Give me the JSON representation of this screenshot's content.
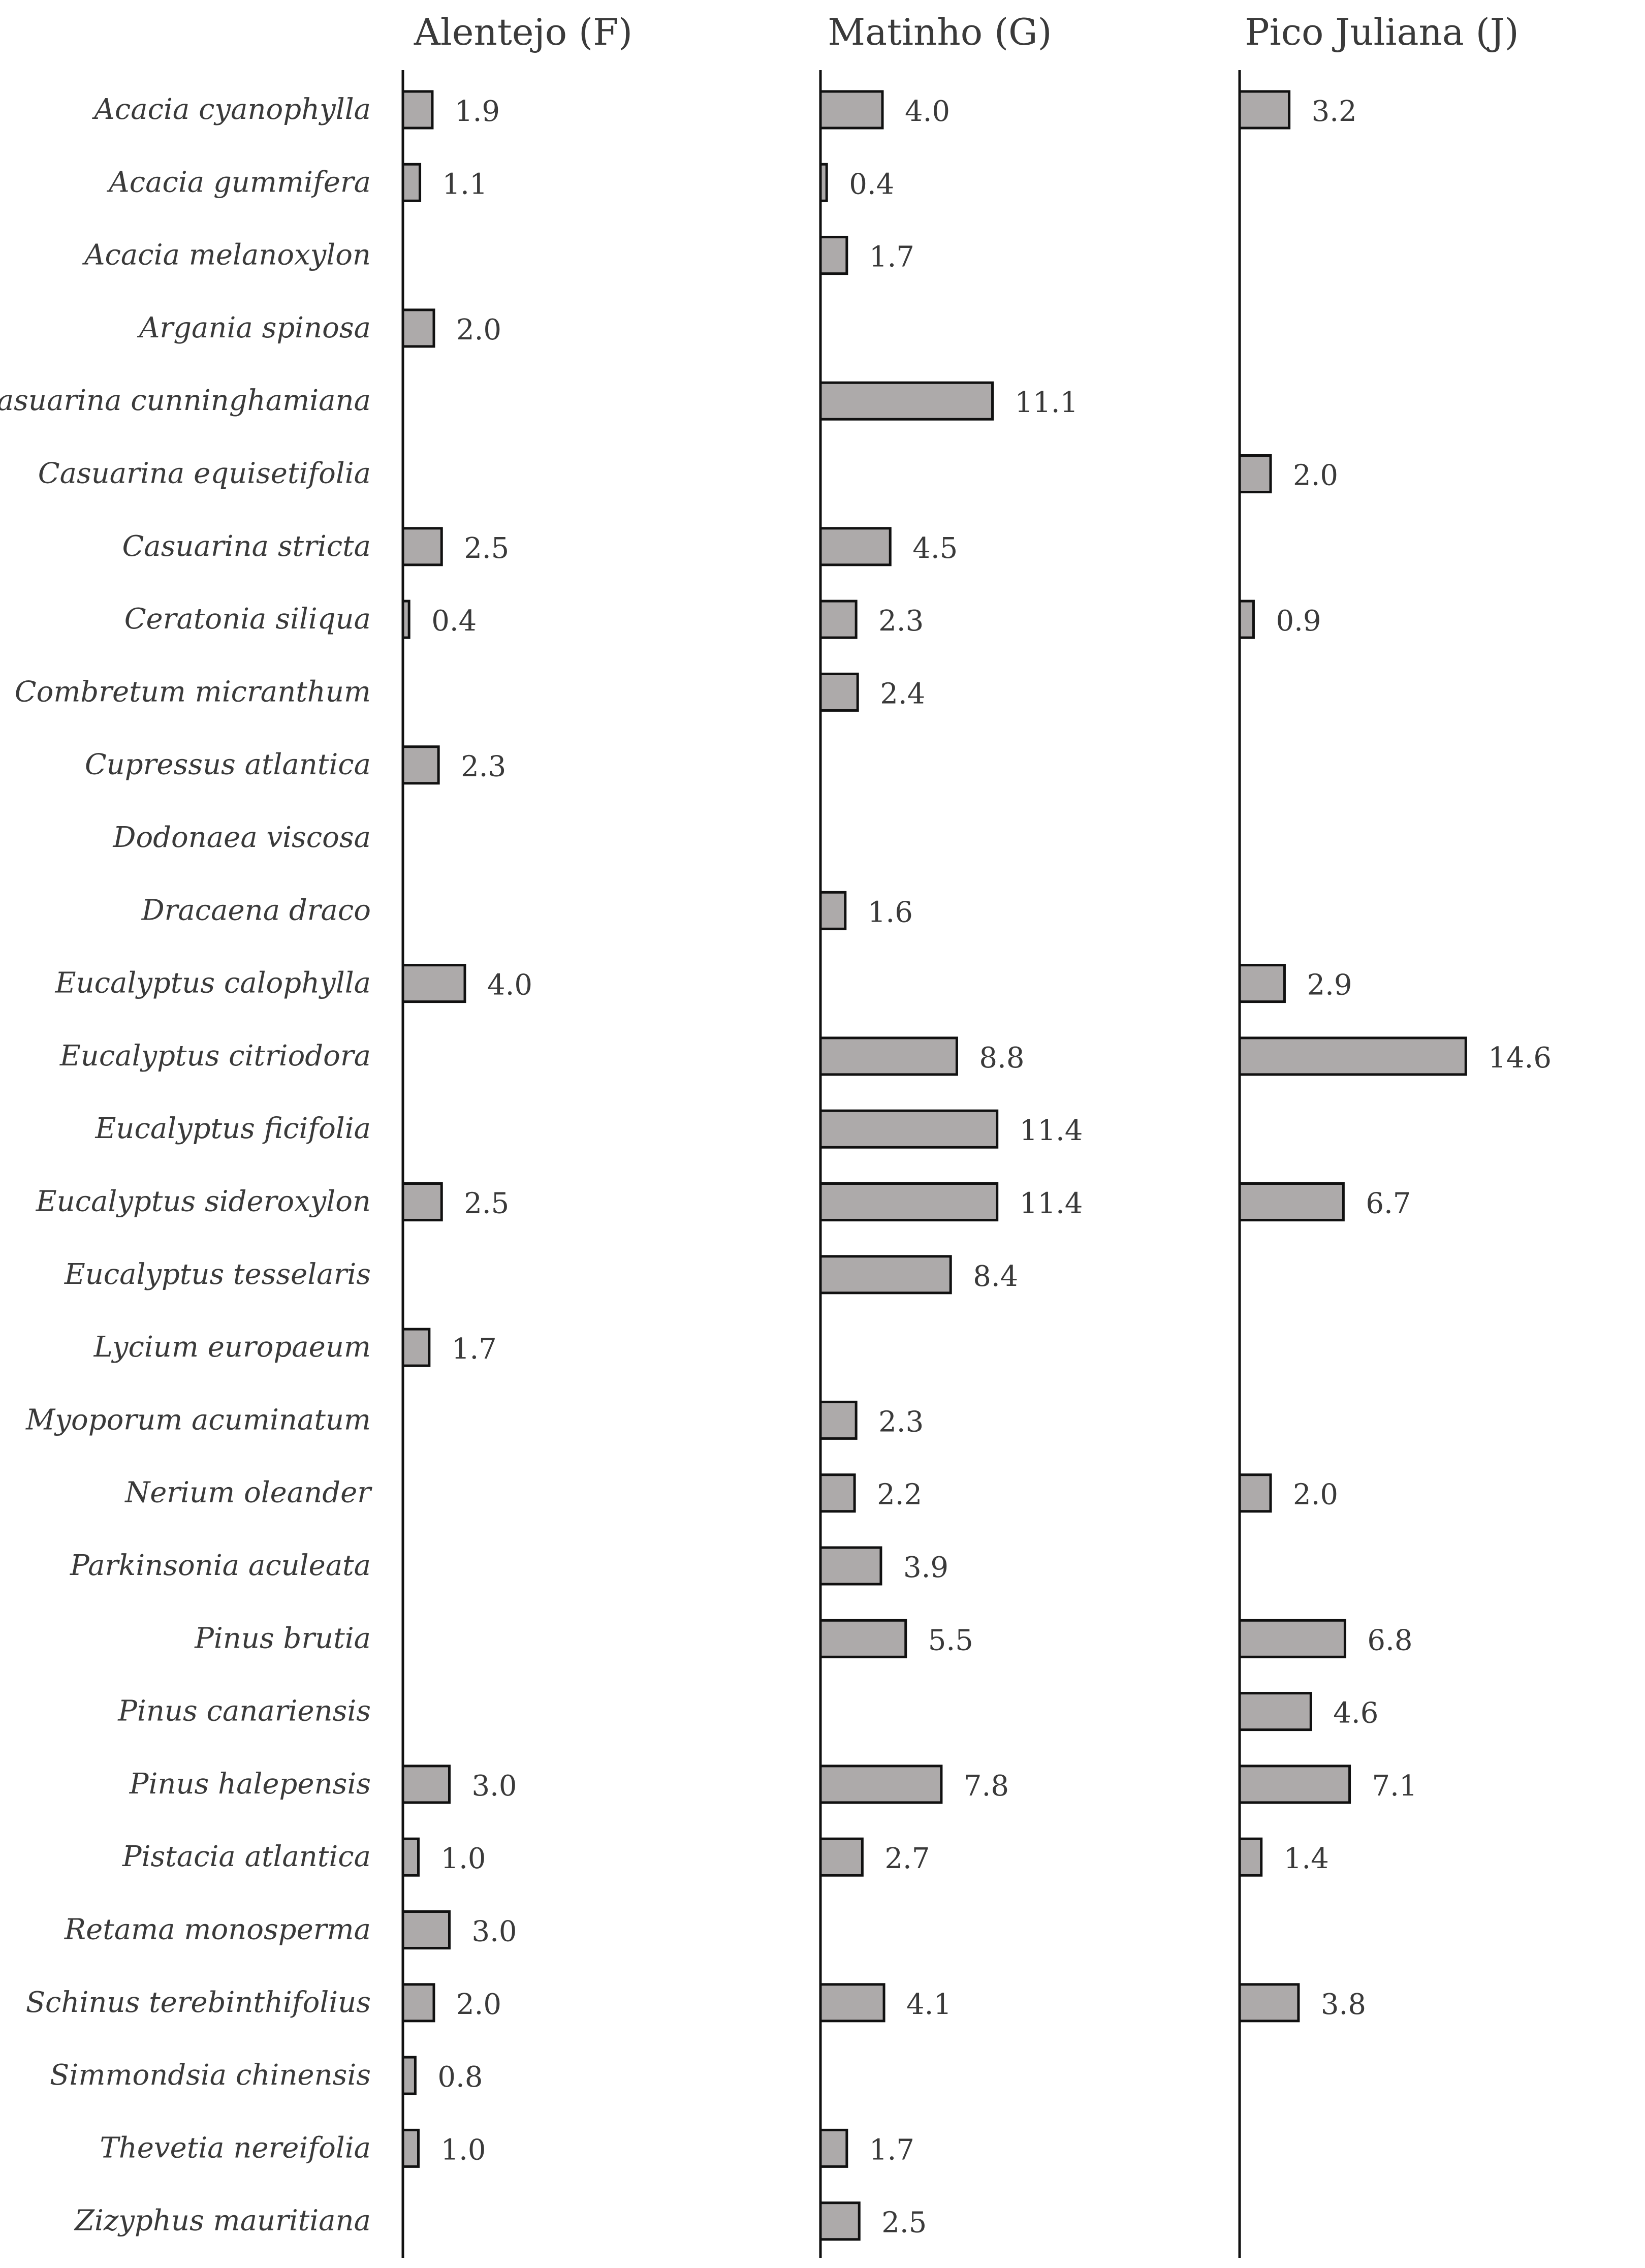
{
  "chart_data": {
    "type": "bar",
    "orientation": "horizontal",
    "grid": false,
    "bar_color": "#adaaaa",
    "line_color": "#111111",
    "text_color": "#3a3a3a",
    "categories": [
      "Acacia cyanophylla",
      "Acacia gummifera",
      "Acacia melanoxylon",
      "Argania spinosa",
      "Casuarina cunninghamiana",
      "Casuarina equisetifolia",
      "Casuarina stricta",
      "Ceratonia siliqua",
      "Combretum micranthum",
      "Cupressus atlantica",
      "Dodonaea viscosa",
      "Dracaena draco",
      "Eucalyptus calophylla",
      "Eucalyptus citriodora",
      "Eucalyptus ficifolia",
      "Eucalyptus sideroxylon",
      "Eucalyptus tesselaris",
      "Lycium europaeum",
      "Myoporum acuminatum",
      "Nerium oleander",
      "Parkinsonia aculeata",
      "Pinus brutia",
      "Pinus canariensis",
      "Pinus halepensis",
      "Pistacia atlantica",
      "Retama monosperma",
      "Schinus terebinthifolius",
      "Simmondsia chinensis",
      "Thevetia nereifolia",
      "Zizyphus mauritiana"
    ],
    "series": [
      {
        "name": "Alentejo (F)",
        "values": [
          1.9,
          1.1,
          null,
          2.0,
          null,
          null,
          2.5,
          0.4,
          null,
          2.3,
          null,
          null,
          4.0,
          null,
          null,
          2.5,
          null,
          1.7,
          null,
          null,
          null,
          null,
          null,
          3.0,
          1.0,
          3.0,
          2.0,
          0.8,
          1.0,
          null
        ],
        "labels": [
          "1.9",
          "1.1",
          null,
          "2.0",
          null,
          null,
          "2.5",
          "0.4",
          null,
          "2.3",
          null,
          null,
          "4.0",
          null,
          null,
          "2.5",
          null,
          "1.7",
          null,
          null,
          null,
          null,
          null,
          "3.0",
          "1.0",
          "3.0",
          "2.0",
          "0.8",
          "1.0",
          null
        ]
      },
      {
        "name": "Matinho (G)",
        "values": [
          4.0,
          0.4,
          1.7,
          null,
          11.1,
          null,
          4.5,
          2.3,
          2.4,
          null,
          null,
          1.6,
          null,
          8.8,
          11.4,
          11.4,
          8.4,
          null,
          2.3,
          2.2,
          3.9,
          5.5,
          null,
          7.8,
          2.7,
          null,
          4.1,
          null,
          1.7,
          2.5
        ],
        "labels": [
          "4.0",
          "0.4",
          "1.7",
          null,
          "11.1",
          null,
          "4.5",
          "2.3",
          "2.4",
          null,
          null,
          "1.6",
          null,
          "8.8",
          "11.4",
          "11.4",
          "8.4",
          null,
          "2.3",
          "2.2",
          "3.9",
          "5.5",
          null,
          "7.8",
          "2.7",
          null,
          "4.1",
          null,
          "1.7",
          "2.5"
        ]
      },
      {
        "name": "Pico Juliana (J)",
        "values": [
          3.2,
          null,
          null,
          null,
          null,
          2.0,
          null,
          0.9,
          null,
          null,
          null,
          null,
          2.9,
          14.6,
          null,
          6.7,
          null,
          null,
          null,
          2.0,
          null,
          6.8,
          4.6,
          7.1,
          1.4,
          null,
          3.8,
          null,
          null,
          null
        ],
        "labels": [
          "3.2",
          null,
          null,
          null,
          null,
          "2.0",
          null,
          "0.9",
          null,
          null,
          null,
          null,
          "2.9",
          "14.6",
          null,
          "6.7",
          null,
          null,
          null,
          "2.0",
          null,
          "6.8",
          "4.6",
          "7.1",
          "1.4",
          null,
          "3.8",
          null,
          null,
          null
        ]
      }
    ]
  }
}
